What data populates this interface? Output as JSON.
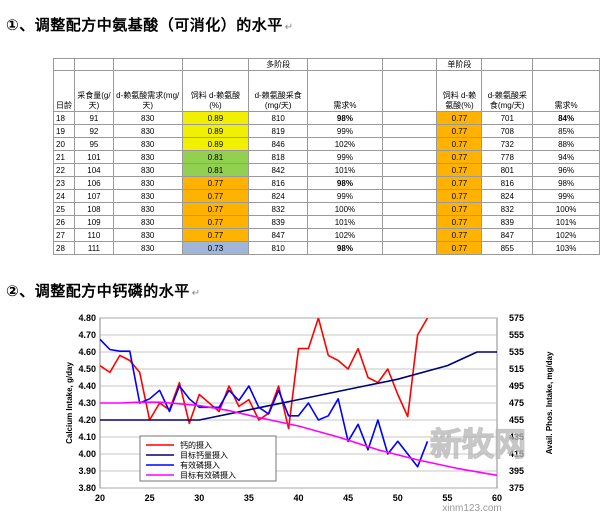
{
  "heading1": "①、调整配方中氨基酸（可消化）的水平",
  "heading2": "②、调整配方中钙磷的水平",
  "return_mark": "↵",
  "watermark": {
    "logo": "新牧网",
    "url": "xinm123.com"
  },
  "table": {
    "group_multi": "多阶段",
    "group_single": "单阶段",
    "headers": [
      "日龄",
      "采食量(g/天)",
      "d-赖氨酸需求(mg/天)",
      "饲料 d-赖氨酸(%)",
      "d-赖氨酸采食(mg/天)",
      "需求%",
      "饲料 d-赖氨酸(%)",
      "d-赖氨酸采食(mg/天)",
      "需求%"
    ],
    "rows": [
      {
        "day": "18",
        "intake": "91",
        "req": "830",
        "m_pct": "0.89",
        "m_int": "810",
        "m_req": "98%",
        "s_pct": "0.77",
        "s_int": "701",
        "s_req": "84%",
        "m_color": "y",
        "m_bold": true,
        "s_bold": true
      },
      {
        "day": "19",
        "intake": "92",
        "req": "830",
        "m_pct": "0.89",
        "m_int": "819",
        "m_req": "99%",
        "s_pct": "0.77",
        "s_int": "708",
        "s_req": "85%",
        "m_color": "y",
        "m_bold": false,
        "s_bold": false
      },
      {
        "day": "20",
        "intake": "95",
        "req": "830",
        "m_pct": "0.89",
        "m_int": "846",
        "m_req": "102%",
        "s_pct": "0.77",
        "s_int": "732",
        "s_req": "88%",
        "m_color": "y",
        "m_bold": false,
        "s_bold": false
      },
      {
        "day": "21",
        "intake": "101",
        "req": "830",
        "m_pct": "0.81",
        "m_int": "818",
        "m_req": "99%",
        "s_pct": "0.77",
        "s_int": "778",
        "s_req": "94%",
        "m_color": "g",
        "m_bold": false,
        "s_bold": false
      },
      {
        "day": "22",
        "intake": "104",
        "req": "830",
        "m_pct": "0.81",
        "m_int": "842",
        "m_req": "101%",
        "s_pct": "0.77",
        "s_int": "801",
        "s_req": "96%",
        "m_color": "g",
        "m_bold": false,
        "s_bold": false
      },
      {
        "day": "23",
        "intake": "106",
        "req": "830",
        "m_pct": "0.77",
        "m_int": "816",
        "m_req": "98%",
        "s_pct": "0.77",
        "s_int": "816",
        "s_req": "98%",
        "m_color": "o",
        "m_bold": true,
        "s_bold": false
      },
      {
        "day": "24",
        "intake": "107",
        "req": "830",
        "m_pct": "0.77",
        "m_int": "824",
        "m_req": "99%",
        "s_pct": "0.77",
        "s_int": "824",
        "s_req": "99%",
        "m_color": "o",
        "m_bold": false,
        "s_bold": false
      },
      {
        "day": "25",
        "intake": "108",
        "req": "830",
        "m_pct": "0.77",
        "m_int": "832",
        "m_req": "100%",
        "s_pct": "0.77",
        "s_int": "832",
        "s_req": "100%",
        "m_color": "o",
        "m_bold": false,
        "s_bold": false
      },
      {
        "day": "26",
        "intake": "109",
        "req": "830",
        "m_pct": "0.77",
        "m_int": "839",
        "m_req": "101%",
        "s_pct": "0.77",
        "s_int": "839",
        "s_req": "101%",
        "m_color": "o",
        "m_bold": false,
        "s_bold": false
      },
      {
        "day": "27",
        "intake": "110",
        "req": "830",
        "m_pct": "0.77",
        "m_int": "847",
        "m_req": "102%",
        "s_pct": "0.77",
        "s_int": "847",
        "s_req": "102%",
        "m_color": "o",
        "m_bold": false,
        "s_bold": false
      },
      {
        "day": "28",
        "intake": "111",
        "req": "830",
        "m_pct": "0.73",
        "m_int": "810",
        "m_req": "98%",
        "s_pct": "0.77",
        "s_int": "855",
        "s_req": "103%",
        "m_color": "b",
        "m_bold": true,
        "s_bold": false
      }
    ]
  },
  "colors": {
    "yellow": "#f0f000",
    "green": "#92d050",
    "orange": "#ffb300",
    "blue": "#9fb6d8",
    "red": "#ff0000",
    "navy": "#00007a",
    "blue_line": "#0000ff",
    "magenta": "#ff00ff"
  },
  "chart_data": {
    "type": "line",
    "xlim": [
      20,
      60
    ],
    "x_ticks": [
      "20",
      "25",
      "30",
      "35",
      "40",
      "45",
      "50",
      "55",
      "60"
    ],
    "y_left": {
      "label": "Calcium Intake, g/day",
      "range": [
        3.8,
        4.8
      ],
      "ticks": [
        "3.80",
        "3.90",
        "4.00",
        "4.10",
        "4.20",
        "4.30",
        "4.40",
        "4.50",
        "4.60",
        "4.70",
        "4.80"
      ]
    },
    "y_right": {
      "label": "Avail. Phos. Intake, mg/day",
      "range": [
        375,
        575
      ],
      "ticks": [
        "375",
        "395",
        "415",
        "435",
        "455",
        "475",
        "495",
        "515",
        "535",
        "555",
        "575"
      ]
    },
    "series": [
      {
        "name": "钙的摄入",
        "axis": "left",
        "color": "#ff0000",
        "x": [
          20,
          21,
          22,
          23,
          24,
          25,
          26,
          27,
          28,
          29,
          30,
          31,
          32,
          33,
          34,
          35,
          36,
          37,
          38,
          39,
          40,
          41,
          42,
          43,
          44,
          45,
          46,
          47,
          48,
          49,
          50,
          51,
          52,
          53
        ],
        "y": [
          4.52,
          4.48,
          4.58,
          4.55,
          4.48,
          4.2,
          4.3,
          4.26,
          4.42,
          4.18,
          4.35,
          4.3,
          4.25,
          4.4,
          4.28,
          4.32,
          4.2,
          4.24,
          4.4,
          4.15,
          4.62,
          4.62,
          4.8,
          4.58,
          4.55,
          4.5,
          4.62,
          4.45,
          4.42,
          4.5,
          4.35,
          4.22,
          4.7,
          4.8
        ]
      },
      {
        "name": "目标钙量摄入",
        "axis": "left",
        "color": "#00007a",
        "x": [
          20,
          25,
          30,
          35,
          40,
          45,
          50,
          55,
          58,
          60
        ],
        "y": [
          4.2,
          4.2,
          4.2,
          4.26,
          4.32,
          4.38,
          4.44,
          4.52,
          4.6,
          4.6
        ]
      },
      {
        "name": "有效磷摄入",
        "axis": "right",
        "color": "#0000ff",
        "x": [
          20,
          21,
          22,
          23,
          24,
          25,
          26,
          27,
          28,
          29,
          30,
          31,
          32,
          33,
          34,
          35,
          36,
          37,
          38,
          39,
          40,
          41,
          42,
          43,
          44,
          45,
          46,
          47,
          48,
          49,
          50,
          51,
          52,
          53
        ],
        "y": [
          550,
          538,
          536,
          536,
          475,
          480,
          490,
          465,
          495,
          480,
          470,
          470,
          470,
          490,
          478,
          495,
          470,
          462,
          490,
          460,
          460,
          475,
          455,
          460,
          480,
          430,
          450,
          420,
          455,
          415,
          430,
          415,
          400,
          430
        ]
      },
      {
        "name": "目标有效磷摄入",
        "axis": "right",
        "color": "#ff00ff",
        "x": [
          20,
          22,
          24,
          26,
          28,
          30,
          33,
          36,
          40,
          44,
          48,
          52,
          56,
          60
        ],
        "y": [
          475,
          475,
          476,
          476,
          474,
          472,
          466,
          458,
          448,
          435,
          420,
          408,
          398,
          390
        ]
      }
    ]
  }
}
